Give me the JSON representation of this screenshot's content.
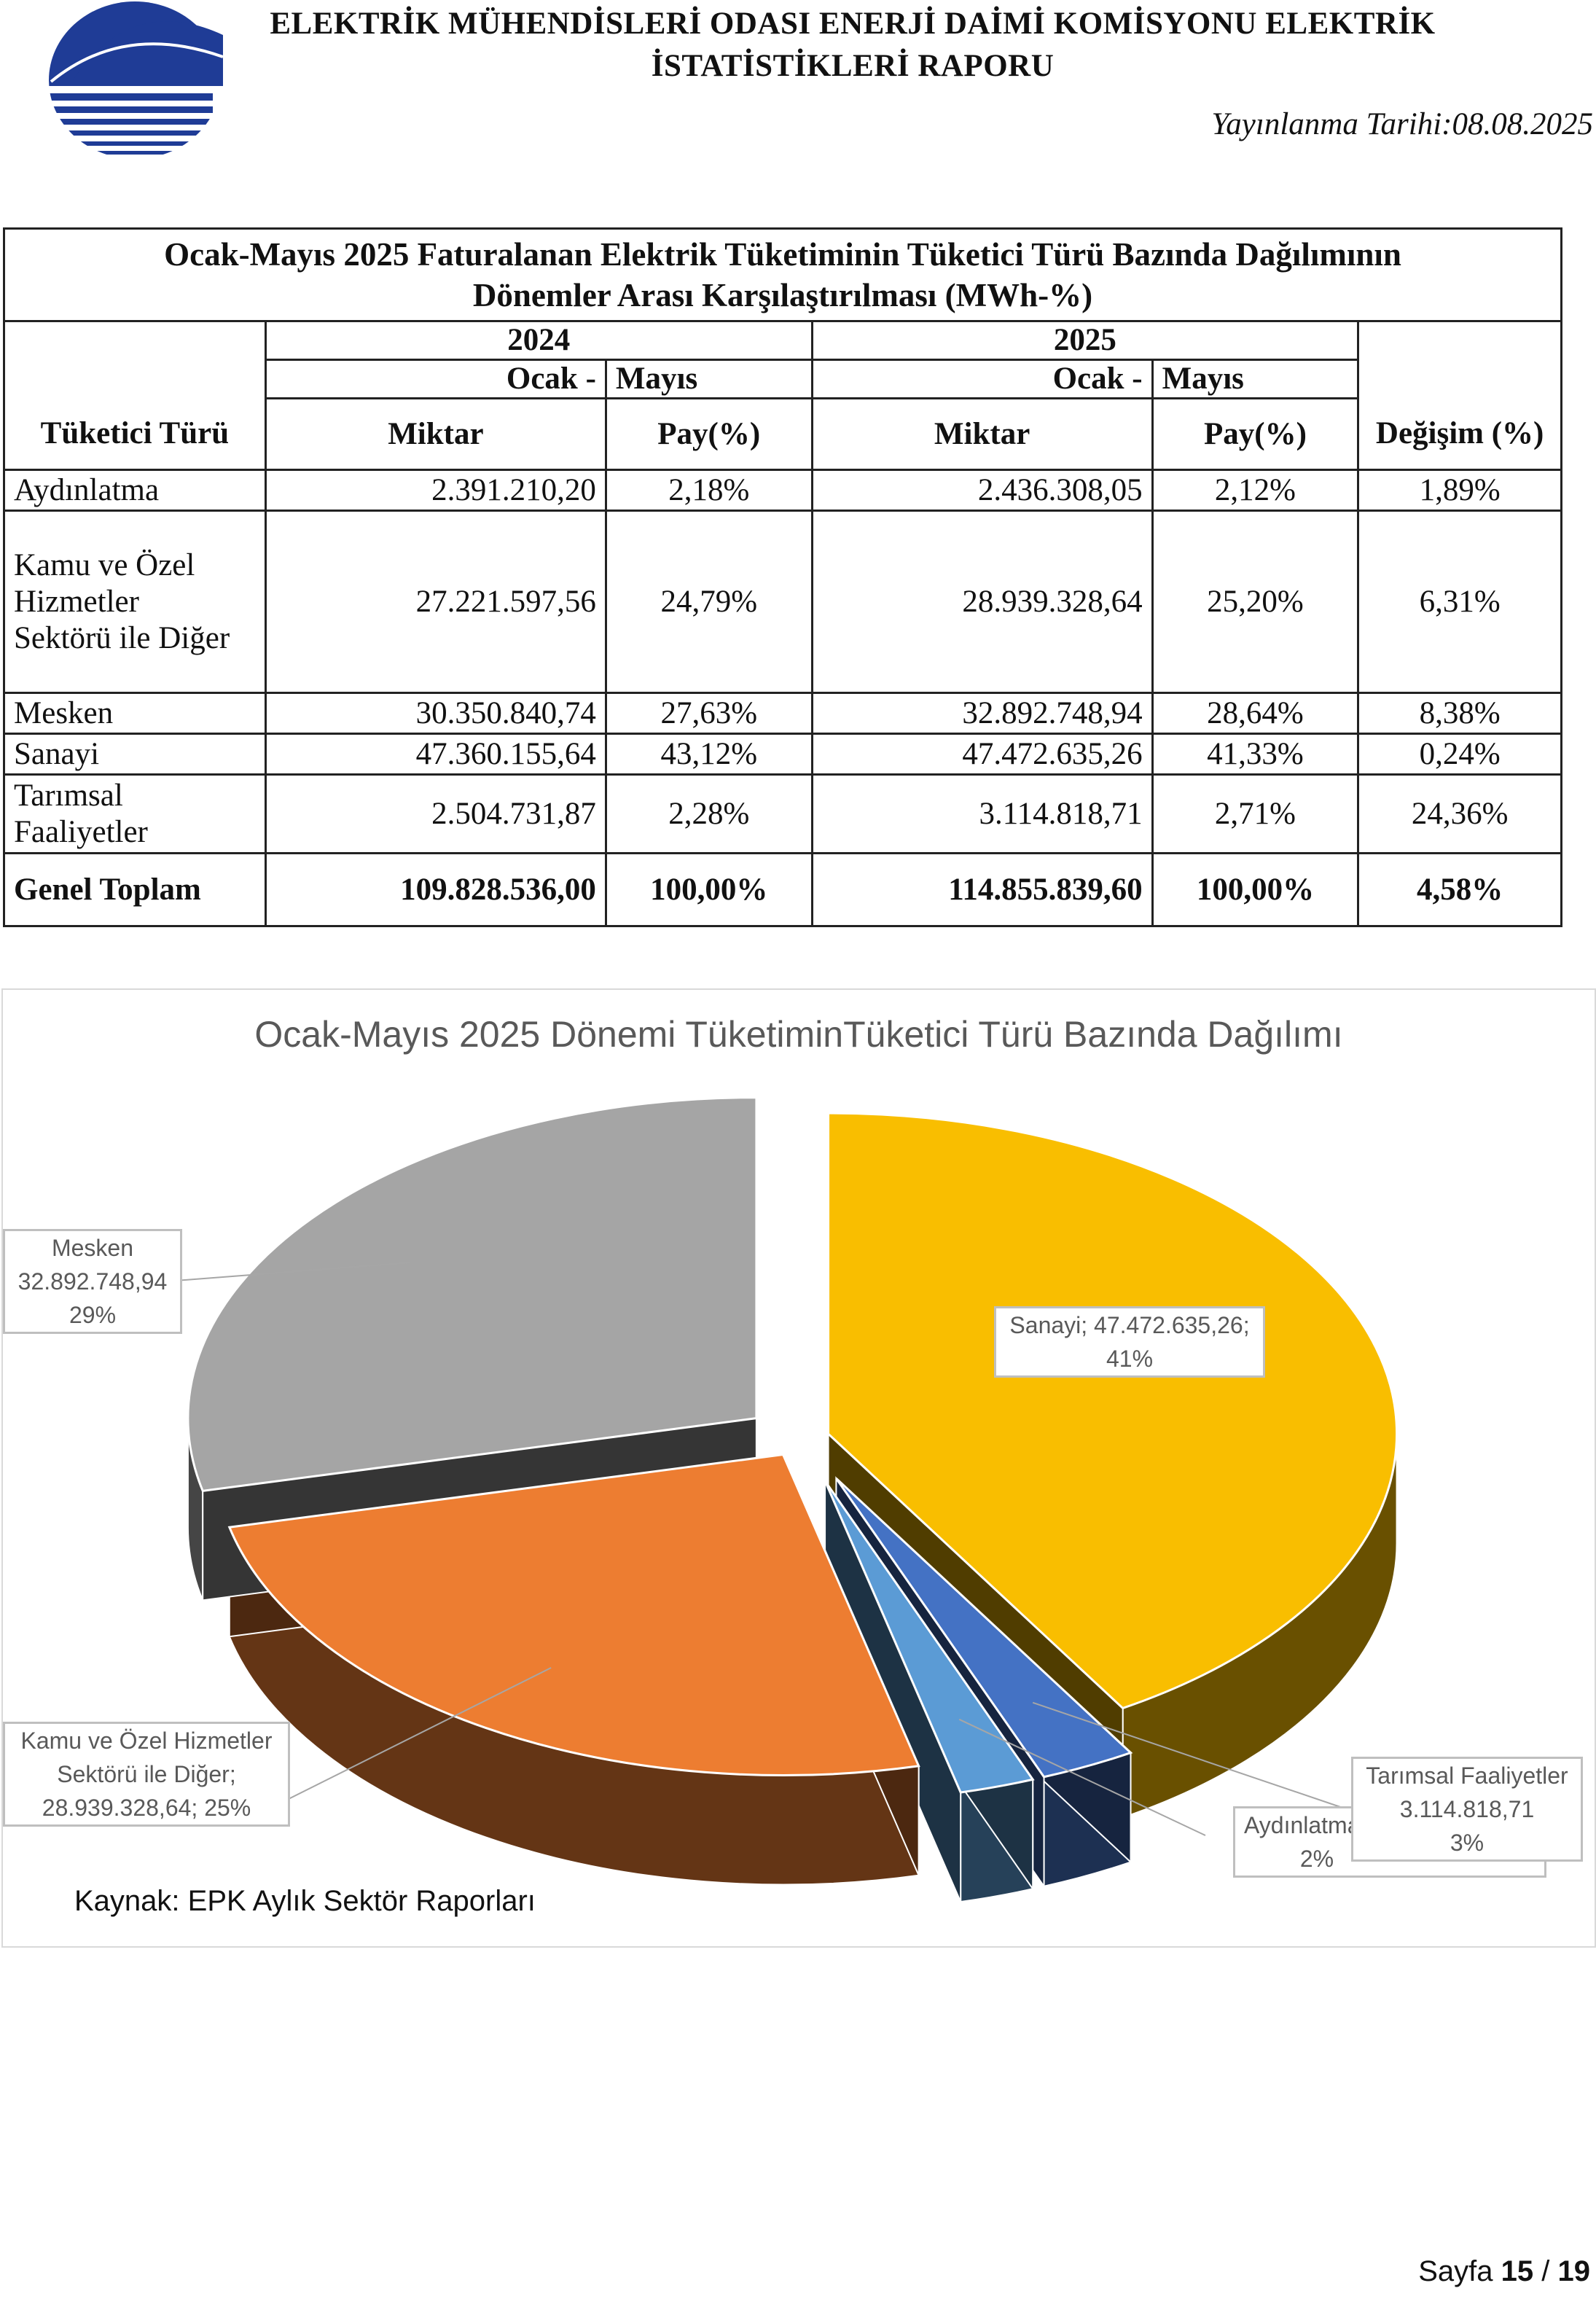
{
  "header": {
    "title_line1": "ELEKTRİK MÜHENDİSLERİ ODASI ENERJİ DAİMİ KOMİSYONU ELEKTRİK",
    "title_line2": "İSTATİSTİKLERİ RAPORU",
    "publish_date": "Yayınlanma Tarihi:08.08.2025",
    "logo_icon": "emo-logo-icon"
  },
  "table": {
    "title_line1": "Ocak-Mayıs 2025 Faturalanan Elektrik Tüketiminin Tüketici Türü Bazında Dağılımının",
    "title_line2": "Dönemler Arası Karşılaştırılması (MWh-%)",
    "year1": "2024",
    "year2": "2025",
    "period_a": "Ocak -",
    "period_b": "Mayıs",
    "col_type": "Tüketici Türü",
    "col_amount": "Miktar",
    "col_share": "Pay(%)",
    "col_change": "Değişim (%)",
    "rows": [
      {
        "line1": "Aydınlatma",
        "line2": "",
        "line3": "",
        "a2024": "2.391.210,20",
        "p2024": "2,18%",
        "a2025": "2.436.308,05",
        "p2025": "2,12%",
        "change": "1,89%"
      },
      {
        "line1": "Kamu ve Özel",
        "line2": "Hizmetler",
        "line3": "Sektörü ile Diğer",
        "a2024": "27.221.597,56",
        "p2024": "24,79%",
        "a2025": "28.939.328,64",
        "p2025": "25,20%",
        "change": "6,31%"
      },
      {
        "line1": "Mesken",
        "line2": "",
        "line3": "",
        "a2024": "30.350.840,74",
        "p2024": "27,63%",
        "a2025": "32.892.748,94",
        "p2025": "28,64%",
        "change": "8,38%"
      },
      {
        "line1": "Sanayi",
        "line2": "",
        "line3": "",
        "a2024": "47.360.155,64",
        "p2024": "43,12%",
        "a2025": "47.472.635,26",
        "p2025": "41,33%",
        "change": "0,24%"
      },
      {
        "line1": "Tarımsal",
        "line2": "Faaliyetler",
        "line3": "",
        "a2024": "2.504.731,87",
        "p2024": "2,28%",
        "a2025": "3.114.818,71",
        "p2025": "2,71%",
        "change": "24,36%"
      }
    ],
    "total": {
      "label": "Genel Toplam",
      "a2024": "109.828.536,00",
      "p2024": "100,00%",
      "a2025": "114.855.839,60",
      "p2025": "100,00%",
      "change": "4,58%"
    }
  },
  "chart_data": {
    "type": "pie",
    "title": "Ocak-Mayıs 2025 Dönemi TüketiminTüketici Türü Bazında Dağılımı",
    "slices": [
      {
        "name": "Sanayi",
        "value": 47472635.26,
        "percent": 41,
        "color": "#F9BE00",
        "label_line1": "Sanayi; 47.472.635,26;",
        "label_line2": "41%",
        "label_line3": ""
      },
      {
        "name": "Tarımsal Faaliyetler",
        "value": 3114818.71,
        "percent": 3,
        "color": "#4472C4",
        "label_line1": "Tarımsal Faaliyetler",
        "label_line2": "3.114.818,71",
        "label_line3": "3%"
      },
      {
        "name": "Aydınlatma",
        "value": 2436308.05,
        "percent": 2,
        "color": "#5B9BD5",
        "label_line1": "Aydınlatma",
        "label_line2": "2%",
        "label_line3": ""
      },
      {
        "name": "Kamu ve Özel Hizmetler Sektörü ile Diğer",
        "value": 28939328.64,
        "percent": 25,
        "color": "#ED7D31",
        "label_line1": "Kamu ve Özel Hizmetler",
        "label_line2": "Sektörü ile Diğer;",
        "label_line3": "28.939.328,64; 25%"
      },
      {
        "name": "Mesken",
        "value": 32892748.94,
        "percent": 29,
        "color": "#A5A5A5",
        "label_line1": "Mesken",
        "label_line2": "32.892.748,94",
        "label_line3": "29%"
      }
    ],
    "style": "3d-exploded",
    "legend": "none"
  },
  "source": "Kaynak: EPK Aylık Sektör Raporları",
  "footer": {
    "page_prefix": "Sayfa",
    "page_current": "15",
    "page_sep": "/",
    "page_total": "19"
  }
}
